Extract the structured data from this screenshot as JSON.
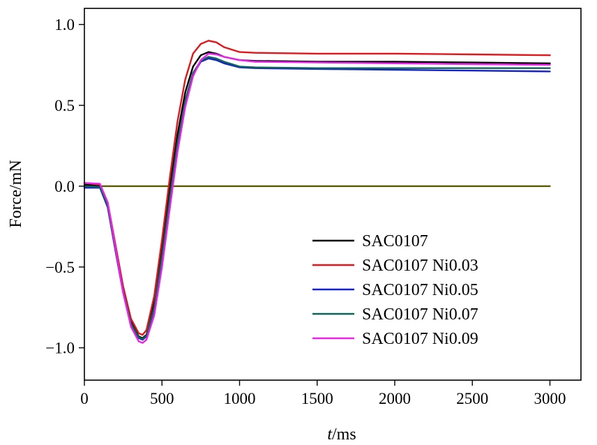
{
  "chart_data": {
    "type": "line",
    "title": "",
    "xlabel_italic": "t",
    "xlabel_rest": "/ms",
    "ylabel": "Force/mN",
    "xlim": [
      0,
      3200
    ],
    "ylim": [
      -1.2,
      1.1
    ],
    "xticks": [
      0,
      500,
      1000,
      1500,
      2000,
      2500,
      3000
    ],
    "yticks": [
      1.0,
      0.5,
      0.0,
      -0.5,
      -1.0
    ],
    "ytick_labels": [
      "1.0",
      "0.5",
      "0.0",
      "−0.5",
      "−1.0"
    ],
    "legend_position": "lower-right",
    "series": [
      {
        "name": "SAC0107",
        "color": "#000000",
        "points": [
          [
            0,
            0.01
          ],
          [
            100,
            0.0
          ],
          [
            150,
            -0.12
          ],
          [
            200,
            -0.38
          ],
          [
            250,
            -0.64
          ],
          [
            300,
            -0.84
          ],
          [
            350,
            -0.93
          ],
          [
            375,
            -0.94
          ],
          [
            400,
            -0.92
          ],
          [
            450,
            -0.72
          ],
          [
            500,
            -0.38
          ],
          [
            550,
            -0.02
          ],
          [
            600,
            0.32
          ],
          [
            650,
            0.58
          ],
          [
            700,
            0.74
          ],
          [
            750,
            0.81
          ],
          [
            800,
            0.83
          ],
          [
            850,
            0.82
          ],
          [
            900,
            0.8
          ],
          [
            1000,
            0.78
          ],
          [
            1100,
            0.775
          ],
          [
            1500,
            0.77
          ],
          [
            2000,
            0.77
          ],
          [
            2500,
            0.765
          ],
          [
            3000,
            0.76
          ]
        ]
      },
      {
        "name": "SAC0107 Ni0.03",
        "color": "#e0161b",
        "points": [
          [
            0,
            0.02
          ],
          [
            100,
            0.01
          ],
          [
            150,
            -0.1
          ],
          [
            200,
            -0.36
          ],
          [
            250,
            -0.62
          ],
          [
            300,
            -0.82
          ],
          [
            350,
            -0.91
          ],
          [
            375,
            -0.92
          ],
          [
            400,
            -0.89
          ],
          [
            450,
            -0.68
          ],
          [
            500,
            -0.33
          ],
          [
            550,
            0.05
          ],
          [
            600,
            0.4
          ],
          [
            650,
            0.66
          ],
          [
            700,
            0.82
          ],
          [
            750,
            0.88
          ],
          [
            800,
            0.9
          ],
          [
            850,
            0.89
          ],
          [
            900,
            0.86
          ],
          [
            1000,
            0.83
          ],
          [
            1100,
            0.825
          ],
          [
            1500,
            0.82
          ],
          [
            2000,
            0.82
          ],
          [
            2500,
            0.815
          ],
          [
            3000,
            0.81
          ]
        ]
      },
      {
        "name": "SAC0107 Ni0.05",
        "color": "#1520c8",
        "points": [
          [
            0,
            -0.01
          ],
          [
            100,
            -0.01
          ],
          [
            150,
            -0.13
          ],
          [
            200,
            -0.4
          ],
          [
            250,
            -0.66
          ],
          [
            300,
            -0.86
          ],
          [
            350,
            -0.94
          ],
          [
            375,
            -0.95
          ],
          [
            400,
            -0.93
          ],
          [
            450,
            -0.76
          ],
          [
            500,
            -0.44
          ],
          [
            550,
            -0.08
          ],
          [
            600,
            0.26
          ],
          [
            650,
            0.52
          ],
          [
            700,
            0.69
          ],
          [
            750,
            0.77
          ],
          [
            800,
            0.79
          ],
          [
            850,
            0.78
          ],
          [
            900,
            0.76
          ],
          [
            1000,
            0.735
          ],
          [
            1100,
            0.73
          ],
          [
            1500,
            0.725
          ],
          [
            2000,
            0.72
          ],
          [
            2500,
            0.715
          ],
          [
            3000,
            0.71
          ]
        ]
      },
      {
        "name": "SAC0107 Ni0.07",
        "color": "#0e6458",
        "points": [
          [
            0,
            0.0
          ],
          [
            100,
            -0.005
          ],
          [
            150,
            -0.12
          ],
          [
            200,
            -0.39
          ],
          [
            250,
            -0.65
          ],
          [
            300,
            -0.85
          ],
          [
            350,
            -0.935
          ],
          [
            375,
            -0.945
          ],
          [
            400,
            -0.925
          ],
          [
            450,
            -0.75
          ],
          [
            500,
            -0.43
          ],
          [
            550,
            -0.07
          ],
          [
            600,
            0.27
          ],
          [
            650,
            0.53
          ],
          [
            700,
            0.7
          ],
          [
            750,
            0.775
          ],
          [
            800,
            0.8
          ],
          [
            850,
            0.79
          ],
          [
            900,
            0.77
          ],
          [
            1000,
            0.74
          ],
          [
            1100,
            0.735
          ],
          [
            1500,
            0.73
          ],
          [
            2000,
            0.73
          ],
          [
            2500,
            0.73
          ],
          [
            3000,
            0.73
          ]
        ]
      },
      {
        "name": "SAC0107 Ni0.09",
        "color": "#ee22ee",
        "points": [
          [
            0,
            0.02
          ],
          [
            100,
            0.015
          ],
          [
            150,
            -0.1
          ],
          [
            200,
            -0.38
          ],
          [
            250,
            -0.66
          ],
          [
            300,
            -0.87
          ],
          [
            350,
            -0.96
          ],
          [
            375,
            -0.97
          ],
          [
            400,
            -0.95
          ],
          [
            450,
            -0.8
          ],
          [
            500,
            -0.5
          ],
          [
            550,
            -0.14
          ],
          [
            600,
            0.21
          ],
          [
            650,
            0.49
          ],
          [
            700,
            0.68
          ],
          [
            750,
            0.78
          ],
          [
            800,
            0.82
          ],
          [
            850,
            0.815
          ],
          [
            900,
            0.8
          ],
          [
            1000,
            0.78
          ],
          [
            1100,
            0.77
          ],
          [
            1500,
            0.765
          ],
          [
            2000,
            0.76
          ],
          [
            2500,
            0.755
          ],
          [
            3000,
            0.75
          ]
        ]
      },
      {
        "name": "",
        "color": "#5a5a00",
        "points": [
          [
            0,
            0.0
          ],
          [
            3000,
            0.0
          ]
        ]
      }
    ]
  }
}
